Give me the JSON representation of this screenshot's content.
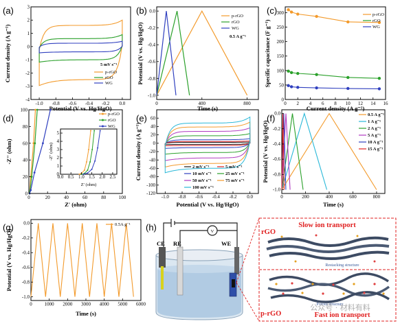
{
  "chart_data": [
    {
      "panel": "(a)",
      "type": "line",
      "xlabel": "Potential (V vs. Hg/HgO)",
      "ylabel": "Current density (A g⁻¹)",
      "xlim": [
        -1.1,
        0.1
      ],
      "ylim": [
        -4,
        3
      ],
      "xticks": [
        "-1.0",
        "-0.8",
        "-0.6",
        "-0.4",
        "-0.2",
        "0.0"
      ],
      "yticks": [
        "-4",
        "-3",
        "-2",
        "-1",
        "0",
        "1",
        "2",
        "3"
      ],
      "annotation": "5 mV s⁻¹",
      "series": [
        {
          "name": "p-rGO",
          "color": "#f39a2b",
          "top": 1.6,
          "bottom": -2.5,
          "edge": 2.0
        },
        {
          "name": "rGO",
          "color": "#2aa02a",
          "top": 0.6,
          "bottom": -1.0,
          "edge": 0.9
        },
        {
          "name": "WG",
          "color": "#2f3fbf",
          "top": 0.25,
          "bottom": -0.4,
          "edge": 0.4
        }
      ]
    },
    {
      "panel": "(b)",
      "type": "line",
      "xlabel": "Time (s)",
      "ylabel": "Potential (V vs. Hg/HgO)",
      "xlim": [
        0,
        900
      ],
      "ylim": [
        -1.05,
        0.05
      ],
      "xticks": [
        "0",
        "400",
        "800"
      ],
      "yticks": [
        "-1.0",
        "-0.8",
        "-0.6",
        "-0.4",
        "-0.2",
        "0.0"
      ],
      "annotation": "0.5 A g⁻¹",
      "series": [
        {
          "name": "p-rGO",
          "color": "#f39a2b",
          "points": [
            [
              0,
              -1.0
            ],
            [
              400,
              0.0
            ],
            [
              800,
              -1.0
            ]
          ]
        },
        {
          "name": "rGO",
          "color": "#2aa02a",
          "points": [
            [
              0,
              -1.0
            ],
            [
              180,
              0.0
            ],
            [
              290,
              -1.0
            ]
          ]
        },
        {
          "name": "WG",
          "color": "#2f3fbf",
          "points": [
            [
              0,
              -1.0
            ],
            [
              85,
              0.0
            ],
            [
              170,
              -1.0
            ]
          ]
        }
      ]
    },
    {
      "panel": "(c)",
      "type": "line",
      "xlabel": "Current density (A g⁻¹)",
      "ylabel": "Specific capacitance (F g⁻¹)",
      "xlim": [
        0,
        16
      ],
      "ylim": [
        0,
        320
      ],
      "xticks": [
        "0",
        "2",
        "4",
        "6",
        "8",
        "10",
        "12",
        "14",
        "16"
      ],
      "yticks": [
        "0",
        "50",
        "100",
        "150",
        "200",
        "250",
        "300"
      ],
      "series": [
        {
          "name": "p-rGO",
          "color": "#f39a2b",
          "points": [
            [
              0.5,
              310
            ],
            [
              1,
              302
            ],
            [
              2,
              295
            ],
            [
              5,
              287
            ],
            [
              10,
              268
            ],
            [
              15,
              266
            ]
          ]
        },
        {
          "name": "rGO",
          "color": "#2aa02a",
          "points": [
            [
              0.5,
              98
            ],
            [
              1,
              93
            ],
            [
              2,
              90
            ],
            [
              5,
              86
            ],
            [
              10,
              76
            ],
            [
              15,
              73
            ]
          ]
        },
        {
          "name": "WG",
          "color": "#2f3fbf",
          "points": [
            [
              0.5,
              48
            ],
            [
              1,
              44
            ],
            [
              2,
              42
            ],
            [
              5,
              40
            ],
            [
              10,
              38
            ],
            [
              15,
              37
            ]
          ]
        }
      ]
    },
    {
      "panel": "(d)",
      "type": "line",
      "xlabel": "Z' (ohm)",
      "ylabel": "-Z'' (ohm)",
      "xlim": [
        0,
        100
      ],
      "ylim": [
        0,
        100
      ],
      "xticks": [
        "0",
        "20",
        "40",
        "60",
        "80",
        "100"
      ],
      "yticks": [
        "0",
        "20",
        "40",
        "60",
        "80",
        "100"
      ],
      "inset": {
        "xlabel": "Z' (ohm)",
        "ylabel": "-Z'' (ohm)",
        "xticks": [
          "0.0",
          "0.5",
          "1.0",
          "1.5",
          "2.0",
          "2.5"
        ],
        "yticks": [
          "0",
          "1",
          "2",
          "3",
          "4",
          "5"
        ]
      },
      "series": [
        {
          "name": "p-rGO",
          "color": "#f39a2b",
          "points": [
            [
              0.5,
              0
            ],
            [
              1,
              3
            ],
            [
              2,
              20
            ],
            [
              5,
              60
            ],
            [
              7,
              100
            ]
          ]
        },
        {
          "name": "rGO",
          "color": "#2aa02a",
          "points": [
            [
              0.6,
              0
            ],
            [
              1.2,
              3
            ],
            [
              3,
              20
            ],
            [
              6.5,
              60
            ],
            [
              9,
              100
            ]
          ]
        },
        {
          "name": "WG",
          "color": "#2f3fbf",
          "points": [
            [
              0.8,
              0
            ],
            [
              2,
              4
            ],
            [
              6,
              25
            ],
            [
              15,
              60
            ],
            [
              23,
              100
            ]
          ]
        }
      ]
    },
    {
      "panel": "(e)",
      "type": "line",
      "xlabel": "Potential (V vs. Hg/HgO)",
      "ylabel": "Current density (A g⁻¹)",
      "xlim": [
        -1.1,
        0.1
      ],
      "ylim": [
        -120,
        80
      ],
      "xticks": [
        "-1.0",
        "-0.8",
        "-0.6",
        "-0.4",
        "-0.2",
        "0.0"
      ],
      "yticks": [
        "-120",
        "-100",
        "-80",
        "-60",
        "-40",
        "-20",
        "0",
        "20",
        "40",
        "60"
      ],
      "series": [
        {
          "name": "2 mV s⁻¹",
          "color": "#1a1a1a",
          "scale": 2
        },
        {
          "name": "5 mV s⁻¹",
          "color": "#e02020",
          "scale": 4
        },
        {
          "name": "10 mV s⁻¹",
          "color": "#2f3fbf",
          "scale": 8
        },
        {
          "name": "25 mV s⁻¹",
          "color": "#2aa02a",
          "scale": 17
        },
        {
          "name": "50 mV s⁻¹",
          "color": "#b03ac0",
          "scale": 27
        },
        {
          "name": "75 mV s⁻¹",
          "color": "#f39a2b",
          "scale": 37
        },
        {
          "name": "100 mV s⁻¹",
          "color": "#29b8d8",
          "scale": 46
        }
      ]
    },
    {
      "panel": "(f)",
      "type": "line",
      "xlabel": "Time (s)",
      "ylabel": "Potential (V vs. Hg/HgO)",
      "xlim": [
        0,
        870
      ],
      "ylim": [
        -1.05,
        0.05
      ],
      "xticks": [
        "0",
        "200",
        "400",
        "600",
        "800"
      ],
      "yticks": [
        "-1.0",
        "-0.8",
        "-0.6",
        "-0.4",
        "-0.2",
        "0.0"
      ],
      "series": [
        {
          "name": "0.5 A g⁻¹",
          "color": "#f39a2b",
          "half": 400
        },
        {
          "name": "1 A g⁻¹",
          "color": "#29b8d8",
          "half": 190
        },
        {
          "name": "2 A g⁻¹",
          "color": "#2aa02a",
          "half": 90
        },
        {
          "name": "5 A g⁻¹",
          "color": "#b03ac0",
          "half": 35
        },
        {
          "name": "10 A g⁻¹",
          "color": "#2f3fbf",
          "half": 17
        },
        {
          "name": "15 A g⁻¹",
          "color": "#e02020",
          "half": 10
        }
      ]
    },
    {
      "panel": "(g)",
      "type": "line",
      "xlabel": "Time (s)",
      "ylabel": "Potential (V vs. Hg/HgO)",
      "xlim": [
        0,
        6000
      ],
      "ylim": [
        -1.05,
        0.05
      ],
      "xticks": [
        "0",
        "1000",
        "2000",
        "3000",
        "4000",
        "5000",
        "6000"
      ],
      "yticks": [
        "-1.0",
        "-0.8",
        "-0.6",
        "-0.4",
        "-0.2",
        "0.0"
      ],
      "annotation": "0.5A g⁻¹",
      "series": [
        {
          "name": "0.5A g⁻¹",
          "color": "#f39a2b",
          "period": 800,
          "start": 0,
          "end": 5700
        }
      ]
    }
  ],
  "schematic": {
    "panel": "(h)",
    "electrodes": [
      "CE",
      "RE",
      "WE"
    ],
    "meter": "V",
    "top_title": "Slow ion transport",
    "top_material": "rGO",
    "top_caption": "Restacking structure",
    "bottom_title": "Fast ion transport",
    "bottom_material": "p-rGO",
    "bottom_caption": "Porous structure"
  },
  "watermark": "公众号 · 材料有料"
}
